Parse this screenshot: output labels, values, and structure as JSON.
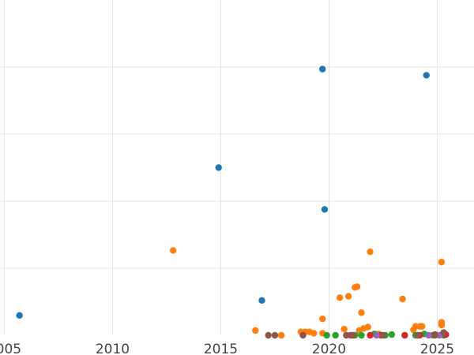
{
  "chart_data": {
    "type": "scatter",
    "title": "",
    "xlabel": "",
    "ylabel": "",
    "grid": true,
    "legend": "none",
    "xlim": [
      2004.8,
      2026.7
    ],
    "ylim": [
      0,
      4.9
    ],
    "x_ticks": [
      {
        "value": 2005,
        "label": "2005"
      },
      {
        "value": 2010,
        "label": "2010"
      },
      {
        "value": 2015,
        "label": "2015"
      },
      {
        "value": 2020,
        "label": "2020"
      },
      {
        "value": 2025,
        "label": "2025"
      }
    ],
    "y_gridlines": [
      0.98,
      1.96,
      2.94,
      3.92
    ],
    "series": [
      {
        "color": "#1f77b4",
        "points": [
          [
            2005.7,
            0.29
          ],
          [
            2014.9,
            2.45
          ],
          [
            2016.9,
            0.51
          ],
          [
            2019.7,
            3.89
          ],
          [
            2019.8,
            1.84
          ],
          [
            2024.5,
            3.8
          ]
        ]
      },
      {
        "color": "#ff7f0e",
        "points": [
          [
            2012.8,
            1.24
          ],
          [
            2016.6,
            0.07
          ],
          [
            2017.8,
            0.0
          ],
          [
            2018.7,
            0.05
          ],
          [
            2018.9,
            0.05
          ],
          [
            2019.1,
            0.05
          ],
          [
            2019.3,
            0.03
          ],
          [
            2019.7,
            0.24
          ],
          [
            2019.7,
            0.03
          ],
          [
            2020.5,
            0.55
          ],
          [
            2020.7,
            0.09
          ],
          [
            2020.9,
            0.57
          ],
          [
            2021.2,
            0.7
          ],
          [
            2021.3,
            0.71
          ],
          [
            2021.4,
            0.07
          ],
          [
            2021.5,
            0.33
          ],
          [
            2021.6,
            0.1
          ],
          [
            2021.8,
            0.12
          ],
          [
            2021.9,
            1.22
          ],
          [
            2022.3,
            0.02
          ],
          [
            2023.4,
            0.53
          ],
          [
            2023.9,
            0.08
          ],
          [
            2024.0,
            0.13
          ],
          [
            2024.2,
            0.13
          ],
          [
            2024.3,
            0.13
          ],
          [
            2025.2,
            1.07
          ],
          [
            2025.2,
            0.19
          ],
          [
            2025.2,
            0.15
          ]
        ]
      },
      {
        "color": "#2ca02c",
        "points": [
          [
            2019.9,
            0.0
          ],
          [
            2020.3,
            0.0
          ],
          [
            2021.2,
            0.0
          ],
          [
            2021.5,
            0.0
          ],
          [
            2022.1,
            0.02
          ],
          [
            2022.6,
            0.0
          ],
          [
            2022.9,
            0.01
          ],
          [
            2024.0,
            0.0
          ],
          [
            2024.4,
            0.02
          ],
          [
            2024.8,
            0.0
          ],
          [
            2025.3,
            0.0
          ]
        ]
      },
      {
        "color": "#d62728",
        "points": [
          [
            2021.0,
            0.0
          ],
          [
            2021.9,
            0.0
          ],
          [
            2022.4,
            0.0
          ],
          [
            2023.5,
            0.0
          ],
          [
            2024.2,
            0.0
          ],
          [
            2024.9,
            0.01
          ],
          [
            2025.4,
            0.01
          ]
        ]
      },
      {
        "color": "#9467bd",
        "points": [
          [
            2021.1,
            0.0
          ],
          [
            2022.2,
            0.0
          ],
          [
            2024.6,
            0.0
          ],
          [
            2025.1,
            0.0
          ]
        ]
      },
      {
        "color": "#8c564b",
        "points": [
          [
            2017.2,
            0.0
          ],
          [
            2017.5,
            0.0
          ],
          [
            2018.8,
            0.0
          ],
          [
            2020.8,
            0.0
          ],
          [
            2021.1,
            0.0
          ],
          [
            2022.5,
            0.0
          ],
          [
            2024.1,
            0.0
          ],
          [
            2024.9,
            0.0
          ],
          [
            2025.3,
            0.04
          ]
        ]
      }
    ]
  }
}
